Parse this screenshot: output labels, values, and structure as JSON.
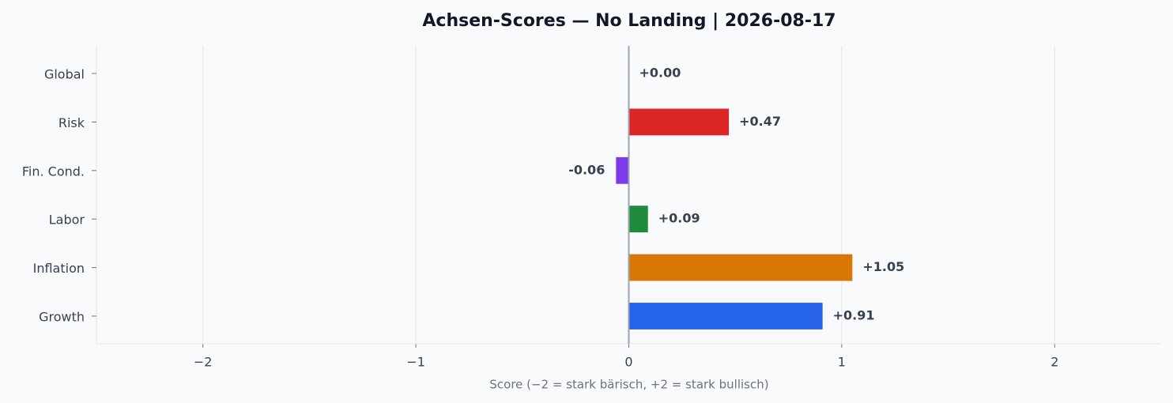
{
  "chart_data": {
    "type": "bar",
    "orientation": "horizontal",
    "title": "Achsen-Scores — No Landing | 2026-08-17",
    "x_label": "Score (−2 = stark bärisch, +2 = stark bullisch)",
    "categories": [
      "Global",
      "Risk",
      "Fin. Cond.",
      "Labor",
      "Inflation",
      "Growth"
    ],
    "values": [
      0.0,
      0.47,
      -0.06,
      0.09,
      1.05,
      0.91
    ],
    "value_labels": [
      "+0.00",
      "+0.47",
      "-0.06",
      "+0.09",
      "+1.05",
      "+0.91"
    ],
    "colors": [
      "#6b7280",
      "#dc2626",
      "#7c3aed",
      "#1f8a3c",
      "#d97706",
      "#2563eb"
    ],
    "xlim": [
      -2.5,
      2.5
    ],
    "xticks": [
      {
        "value": -2,
        "label": "−2"
      },
      {
        "value": -1,
        "label": "−1"
      },
      0,
      1,
      2
    ],
    "grid": true
  }
}
